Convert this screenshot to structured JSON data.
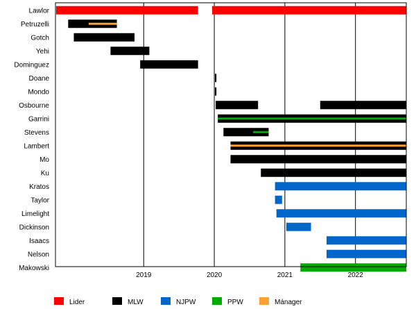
{
  "chart_data": {
    "type": "timeline",
    "title": "",
    "x_axis": {
      "ticks": [
        "2019",
        "2020",
        "2021",
        "2022"
      ],
      "range": [
        2017.75,
        2022.72
      ]
    },
    "grid": {
      "vertical": true,
      "horizontal": false
    },
    "legend_position": "bottom",
    "colors": {
      "Lider": "#ff0000",
      "MLW": "#000000",
      "NJPW": "#0066cc",
      "PPW": "#00aa00",
      "Mánager": "#ffa033"
    },
    "legend": [
      {
        "label": "Lider",
        "key": "Lider"
      },
      {
        "label": "MLW",
        "key": "MLW"
      },
      {
        "label": "NJPW",
        "key": "NJPW"
      },
      {
        "label": "PPW",
        "key": "PPW"
      },
      {
        "label": "Mánager",
        "key": "Mánager"
      }
    ],
    "rows": [
      {
        "name": "Lawlor",
        "bars": [
          {
            "start": 2017.76,
            "end": 2019.77,
            "type": "Lider"
          },
          {
            "start": 2019.97,
            "end": 2022.72,
            "type": "Lider"
          }
        ]
      },
      {
        "name": "Petruzelli",
        "bars": [
          {
            "start": 2017.93,
            "end": 2018.62,
            "type": "MLW"
          },
          {
            "start": 2018.22,
            "end": 2018.62,
            "type": "Mánager",
            "overlay": true
          }
        ]
      },
      {
        "name": "Gotch",
        "bars": [
          {
            "start": 2018.01,
            "end": 2018.87,
            "type": "MLW"
          }
        ]
      },
      {
        "name": "Yehi",
        "bars": [
          {
            "start": 2018.53,
            "end": 2019.08,
            "type": "MLW"
          }
        ]
      },
      {
        "name": "Dominguez",
        "bars": [
          {
            "start": 2018.95,
            "end": 2019.77,
            "type": "MLW"
          }
        ]
      },
      {
        "name": "Doane",
        "bars": [
          {
            "start": 2020.01,
            "end": 2020.03,
            "type": "MLW"
          }
        ]
      },
      {
        "name": "Mondo",
        "bars": [
          {
            "start": 2020.01,
            "end": 2020.03,
            "type": "MLW"
          }
        ]
      },
      {
        "name": "Osbourne",
        "bars": [
          {
            "start": 2020.02,
            "end": 2020.62,
            "type": "MLW"
          },
          {
            "start": 2021.5,
            "end": 2022.72,
            "type": "MLW"
          }
        ]
      },
      {
        "name": "Garrini",
        "bars": [
          {
            "start": 2020.05,
            "end": 2022.72,
            "type": "MLW"
          },
          {
            "start": 2020.05,
            "end": 2022.72,
            "type": "PPW",
            "overlay": true
          }
        ]
      },
      {
        "name": "Stevens",
        "bars": [
          {
            "start": 2020.13,
            "end": 2020.77,
            "type": "MLW"
          },
          {
            "start": 2020.55,
            "end": 2020.77,
            "type": "PPW",
            "overlay": true
          }
        ]
      },
      {
        "name": "Lambert",
        "bars": [
          {
            "start": 2020.23,
            "end": 2022.72,
            "type": "MLW"
          },
          {
            "start": 2020.23,
            "end": 2022.72,
            "type": "Mánager",
            "overlay": true
          }
        ]
      },
      {
        "name": "Mo",
        "bars": [
          {
            "start": 2020.23,
            "end": 2022.72,
            "type": "MLW"
          }
        ]
      },
      {
        "name": "Ku",
        "bars": [
          {
            "start": 2020.66,
            "end": 2022.72,
            "type": "MLW"
          }
        ]
      },
      {
        "name": "Kratos",
        "bars": [
          {
            "start": 2020.86,
            "end": 2022.72,
            "type": "NJPW"
          }
        ]
      },
      {
        "name": "Taylor",
        "bars": [
          {
            "start": 2020.86,
            "end": 2020.96,
            "type": "NJPW"
          }
        ]
      },
      {
        "name": "Limelight",
        "bars": [
          {
            "start": 2020.88,
            "end": 2022.72,
            "type": "NJPW"
          }
        ]
      },
      {
        "name": "Dickinson",
        "bars": [
          {
            "start": 2021.02,
            "end": 2021.37,
            "type": "NJPW"
          }
        ]
      },
      {
        "name": "Isaacs",
        "bars": [
          {
            "start": 2021.59,
            "end": 2022.72,
            "type": "NJPW"
          }
        ]
      },
      {
        "name": "Nelson",
        "bars": [
          {
            "start": 2021.59,
            "end": 2022.72,
            "type": "NJPW"
          }
        ]
      },
      {
        "name": "Makowski",
        "bars": [
          {
            "start": 2021.22,
            "end": 2022.72,
            "type": "PPW"
          }
        ]
      }
    ]
  }
}
